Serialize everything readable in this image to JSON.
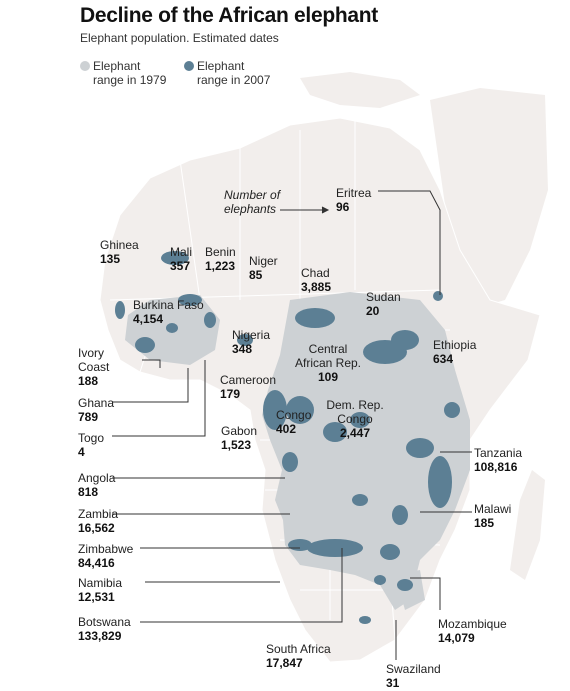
{
  "title": "Decline of the African elephant",
  "subtitle": "Elephant population. Estimated dates",
  "legend": {
    "range_1979": {
      "line1": "Elephant",
      "line2": "range in 1979",
      "color": "#cdd1d4"
    },
    "range_2007": {
      "line1": "Elephant",
      "line2": "range in 2007",
      "color": "#5c7f94"
    }
  },
  "annotation": {
    "line1": "Number of",
    "line2": "elephants"
  },
  "colors": {
    "land": "#f2eeec",
    "sea": "#ffffff",
    "border": "#ffffff"
  },
  "countries": {
    "eritrea": {
      "name": "Eritrea",
      "value": "96"
    },
    "ghinea": {
      "name": "Ghinea",
      "value": "135"
    },
    "mali": {
      "name": "Mali",
      "value": "357"
    },
    "benin": {
      "name": "Benin",
      "value": "1,223"
    },
    "niger": {
      "name": "Niger",
      "value": "85"
    },
    "chad": {
      "name": "Chad",
      "value": "3,885"
    },
    "sudan": {
      "name": "Sudan",
      "value": "20"
    },
    "burkina_faso": {
      "name": "Burkina Faso",
      "value": "4,154"
    },
    "nigeria": {
      "name": "Nigeria",
      "value": "348"
    },
    "ethiopia": {
      "name": "Ethiopia",
      "value": "634"
    },
    "ivory_coast": {
      "name1": "Ivory",
      "name2": "Coast",
      "value": "188"
    },
    "car": {
      "name1": "Central",
      "name2": "African Rep.",
      "value": "109"
    },
    "cameroon": {
      "name": "Cameroon",
      "value": "179"
    },
    "ghana": {
      "name": "Ghana",
      "value": "789"
    },
    "congo": {
      "name": "Congo",
      "value": "402"
    },
    "drc": {
      "name1": "Dem. Rep.",
      "name2": "Congo",
      "value": "2,447"
    },
    "gabon": {
      "name": "Gabon",
      "value": "1,523"
    },
    "togo": {
      "name": "Togo",
      "value": "4"
    },
    "tanzania": {
      "name": "Tanzania",
      "value": "108,816"
    },
    "angola": {
      "name": "Angola",
      "value": "818"
    },
    "malawi": {
      "name": "Malawi",
      "value": "185"
    },
    "zambia": {
      "name": "Zambia",
      "value": "16,562"
    },
    "zimbabwe": {
      "name": "Zimbabwe",
      "value": "84,416"
    },
    "namibia": {
      "name": "Namibia",
      "value": "12,531"
    },
    "botswana": {
      "name": "Botswana",
      "value": "133,829"
    },
    "mozambique": {
      "name": "Mozambique",
      "value": "14,079"
    },
    "south_africa": {
      "name": "South Africa",
      "value": "17,847"
    },
    "swaziland": {
      "name": "Swaziland",
      "value": "31"
    }
  }
}
